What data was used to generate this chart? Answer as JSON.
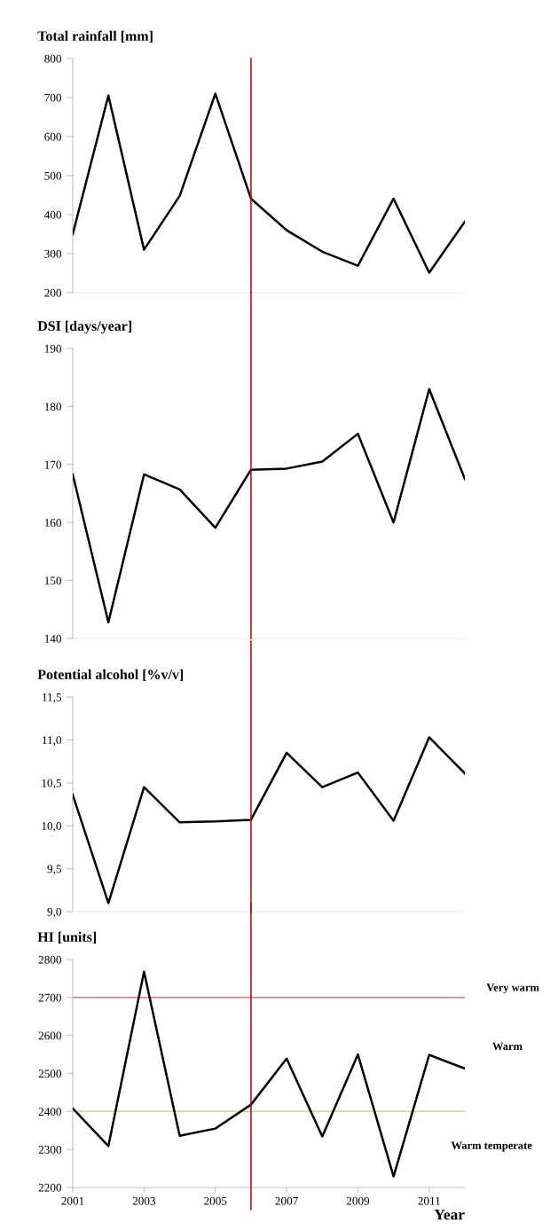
{
  "chart_data": [
    {
      "type": "line",
      "title": "Total rainfall [mm]",
      "x": [
        2001,
        2002,
        2003,
        2004,
        2005,
        2006,
        2007,
        2008,
        2009,
        2010,
        2011,
        2012
      ],
      "xlim": [
        2001,
        2012
      ],
      "xticks": [
        2001,
        2003,
        2005,
        2007,
        2009,
        2011
      ],
      "ylim": [
        200,
        800
      ],
      "yticks": [
        200,
        300,
        400,
        500,
        600,
        700,
        800
      ],
      "tick_labels": "y",
      "grid": false,
      "legend": false,
      "marker": "none",
      "line_style": "solid",
      "series": [
        {
          "color": "#000000",
          "values": [
            350,
            705,
            310,
            448,
            710,
            441,
            360,
            305,
            269,
            441,
            251,
            382
          ]
        }
      ],
      "ref_lines": [
        {
          "axis": "x",
          "value": 2006,
          "color": "#c00000"
        }
      ]
    },
    {
      "type": "line",
      "title": "DSI [days/year]",
      "x": [
        2001,
        2002,
        2003,
        2004,
        2005,
        2006,
        2007,
        2008,
        2009,
        2010,
        2011,
        2012
      ],
      "xlim": [
        2001,
        2012
      ],
      "xticks": [
        2001,
        2003,
        2005,
        2007,
        2009,
        2011
      ],
      "ylim": [
        140,
        190
      ],
      "yticks": [
        140,
        150,
        160,
        170,
        180,
        190
      ],
      "tick_labels": "y",
      "grid": false,
      "legend": false,
      "marker": "none",
      "line_style": "solid",
      "series": [
        {
          "color": "#000000",
          "values": [
            168.3,
            142.8,
            168.3,
            165.7,
            159.1,
            169.1,
            169.3,
            170.5,
            175.3,
            160.0,
            183.0,
            167.5
          ]
        }
      ],
      "ref_lines": [
        {
          "axis": "x",
          "value": 2006,
          "color": "#c00000"
        }
      ]
    },
    {
      "type": "line",
      "title": "Potential alcohol [%v/v]",
      "x": [
        2001,
        2002,
        2003,
        2004,
        2005,
        2006,
        2007,
        2008,
        2009,
        2010,
        2011,
        2012
      ],
      "xlim": [
        2001,
        2012
      ],
      "xticks": [
        2001,
        2003,
        2005,
        2007,
        2009,
        2011
      ],
      "ylim": [
        9.0,
        11.5
      ],
      "yticks": [
        {
          "value": 9.0,
          "label": "9,0"
        },
        {
          "value": 9.5,
          "label": "9,5"
        },
        {
          "value": 10.0,
          "label": "10,0"
        },
        {
          "value": 10.5,
          "label": "10,5"
        },
        {
          "value": 11.0,
          "label": "11,0"
        },
        {
          "value": 11.5,
          "label": "11,5"
        }
      ],
      "tick_labels": "y",
      "grid": false,
      "legend": false,
      "marker": "none",
      "line_style": "solid",
      "series": [
        {
          "color": "#000000",
          "values": [
            10.36,
            9.1,
            10.45,
            10.04,
            10.05,
            10.07,
            10.85,
            10.45,
            10.62,
            10.06,
            11.03,
            10.61
          ]
        }
      ],
      "ref_lines": [
        {
          "axis": "x",
          "value": 2006,
          "color": "#c00000"
        }
      ]
    },
    {
      "type": "line",
      "title": "HI [units]",
      "xlabel": "Year",
      "x": [
        2001,
        2002,
        2003,
        2004,
        2005,
        2006,
        2007,
        2008,
        2009,
        2010,
        2011,
        2012
      ],
      "xlim": [
        2001,
        2012
      ],
      "xticks": [
        2001,
        2003,
        2005,
        2007,
        2009,
        2011
      ],
      "ylim": [
        2200,
        2800
      ],
      "yticks": [
        2200,
        2300,
        2400,
        2500,
        2600,
        2700,
        2800
      ],
      "grid": false,
      "legend": false,
      "marker": "none",
      "line_style": "solid",
      "series": [
        {
          "color": "#000000",
          "values": [
            2408,
            2309,
            2768,
            2336,
            2355,
            2418,
            2539,
            2334,
            2550,
            2229,
            2549,
            2513
          ]
        }
      ],
      "ref_lines": [
        {
          "axis": "x",
          "value": 2006,
          "color": "#c00000"
        },
        {
          "axis": "y",
          "value": 2700,
          "label": "Very warm",
          "color": "#d9777a"
        },
        {
          "axis": "y",
          "value": 2400,
          "color": "#c9d6a3"
        }
      ],
      "annotations": [
        "Warm",
        "Warm temperate"
      ]
    }
  ]
}
